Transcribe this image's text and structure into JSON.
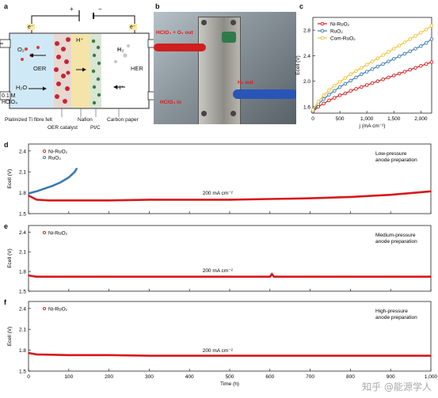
{
  "figure": {
    "panel_labels": [
      "a",
      "b",
      "c",
      "d",
      "e",
      "f"
    ],
    "watermark": "知乎 @能源学人"
  },
  "panel_a": {
    "plus": "+",
    "minus": "−",
    "e_left": "e⁻",
    "e_right": "e⁻",
    "o2": "O₂",
    "oer": "OER",
    "h2o": "H₂O",
    "h_plus_top": "H⁺",
    "h2": "H₂",
    "her": "HER",
    "h_plus_right": "H⁺",
    "electrolyte_line1": "0.1 M",
    "electrolyte_line2": "HClO₄",
    "felt": "Platinized Ti fibre felt",
    "nafion": "Nafion",
    "carbon": "Carbon paper",
    "oer_catalyst": "OER catalyst",
    "ptc": "Pt/C"
  },
  "panel_b": {
    "hclo4_o2_out": "HClO₄ + O₂ out",
    "h2_out": "H₂ out",
    "hclo4_in": "HClO₄ in"
  },
  "chart_data": [
    {
      "id": "c",
      "type": "line",
      "xlabel": "j (mA cm⁻²)",
      "ylabel": "Ecell (V)",
      "xlim": [
        0,
        2200
      ],
      "ylim": [
        1.5,
        3.0
      ],
      "xticks": [
        "0",
        "500",
        "1,000",
        "1,500",
        "2,000"
      ],
      "yticks": [
        "1.6",
        "2.0",
        "2.4",
        "2.8"
      ],
      "legend_position": "top-left",
      "series": [
        {
          "name": "Ni-RuO₂",
          "color": "#d7191c",
          "x": [
            0,
            100,
            200,
            300,
            400,
            500,
            600,
            700,
            800,
            900,
            1000,
            1100,
            1200,
            1300,
            1400,
            1500,
            1600,
            1700,
            1800,
            1900,
            2000,
            2100,
            2200
          ],
          "y": [
            1.52,
            1.6,
            1.65,
            1.7,
            1.74,
            1.78,
            1.81,
            1.85,
            1.88,
            1.91,
            1.94,
            1.97,
            2.0,
            2.03,
            2.06,
            2.09,
            2.12,
            2.15,
            2.18,
            2.21,
            2.24,
            2.27,
            2.3
          ]
        },
        {
          "name": "RuO₂",
          "color": "#3a78b4",
          "x": [
            0,
            100,
            200,
            300,
            400,
            500,
            600,
            700,
            800,
            900,
            1000,
            1100,
            1200,
            1300,
            1400,
            1500,
            1600,
            1700,
            1800,
            1900,
            2000,
            2100,
            2200
          ],
          "y": [
            1.53,
            1.64,
            1.72,
            1.79,
            1.85,
            1.91,
            1.96,
            2.01,
            2.06,
            2.11,
            2.15,
            2.19,
            2.23,
            2.27,
            2.31,
            2.35,
            2.39,
            2.43,
            2.47,
            2.51,
            2.55,
            2.6,
            2.66
          ]
        },
        {
          "name": "Com-RuO₂",
          "color": "#f2c230",
          "x": [
            0,
            100,
            200,
            300,
            400,
            500,
            600,
            700,
            800,
            900,
            1000,
            1100,
            1200,
            1300,
            1400,
            1500,
            1600,
            1700,
            1800,
            1900,
            2000,
            2100,
            2200
          ],
          "y": [
            1.55,
            1.68,
            1.78,
            1.86,
            1.93,
            1.99,
            2.05,
            2.11,
            2.16,
            2.21,
            2.26,
            2.31,
            2.36,
            2.41,
            2.46,
            2.51,
            2.56,
            2.61,
            2.66,
            2.71,
            2.76,
            2.81,
            2.87
          ]
        }
      ]
    },
    {
      "id": "d",
      "type": "line",
      "ylabel": "Ecell (V)",
      "xlim": [
        0,
        1000
      ],
      "ylim": [
        1.5,
        2.5
      ],
      "yticks": [
        "1.5",
        "1.8",
        "2.1",
        "2.4"
      ],
      "note_line1": "Low-pressure",
      "note_line2": "anode preparation",
      "annotation": "200 mA cm⁻²",
      "legend_position": "top-left",
      "series": [
        {
          "name": "Ni-RuO₂",
          "color": "#d7191c",
          "x": [
            0,
            20,
            50,
            100,
            150,
            200,
            300,
            400,
            500,
            600,
            700,
            800,
            900,
            1000
          ],
          "y": [
            1.76,
            1.7,
            1.69,
            1.69,
            1.69,
            1.69,
            1.7,
            1.7,
            1.7,
            1.71,
            1.72,
            1.74,
            1.77,
            1.82
          ]
        },
        {
          "name": "RuO₂",
          "color": "#3a78b4",
          "x": [
            0,
            20,
            40,
            60,
            80,
            100,
            115,
            120
          ],
          "y": [
            1.79,
            1.82,
            1.86,
            1.9,
            1.95,
            2.02,
            2.1,
            2.15
          ]
        }
      ]
    },
    {
      "id": "e",
      "type": "line",
      "ylabel": "Ecell (V)",
      "xlim": [
        0,
        1000
      ],
      "ylim": [
        1.5,
        2.5
      ],
      "yticks": [
        "1.5",
        "1.8",
        "2.1",
        "2.4"
      ],
      "note_line1": "Medium-pressure",
      "note_line2": "anode preparation",
      "annotation": "200 mA cm⁻²",
      "legend_position": "top-left",
      "series": [
        {
          "name": "Ni-RuO₂",
          "color": "#d7191c",
          "x": [
            0,
            20,
            100,
            200,
            300,
            400,
            500,
            600,
            605,
            610,
            700,
            800,
            900,
            1000
          ],
          "y": [
            1.74,
            1.72,
            1.72,
            1.72,
            1.72,
            1.72,
            1.72,
            1.72,
            1.76,
            1.72,
            1.72,
            1.72,
            1.72,
            1.72
          ]
        }
      ]
    },
    {
      "id": "f",
      "type": "line",
      "xlabel": "Time (h)",
      "ylabel": "Ecell (V)",
      "xlim": [
        0,
        1000
      ],
      "ylim": [
        1.5,
        2.5
      ],
      "xticks": [
        "0",
        "100",
        "200",
        "300",
        "400",
        "500",
        "600",
        "700",
        "800",
        "900",
        "1,000"
      ],
      "yticks": [
        "1.5",
        "1.8",
        "2.1",
        "2.4"
      ],
      "note_line1": "High-pressure",
      "note_line2": "anode preparation",
      "annotation": "200 mA cm⁻²",
      "legend_position": "top-left",
      "series": [
        {
          "name": "Ni-RuO₂",
          "color": "#d7191c",
          "x": [
            0,
            20,
            100,
            200,
            300,
            400,
            500,
            600,
            700,
            800,
            900,
            1000
          ],
          "y": [
            1.76,
            1.74,
            1.73,
            1.73,
            1.72,
            1.72,
            1.72,
            1.72,
            1.72,
            1.72,
            1.72,
            1.72
          ]
        }
      ]
    }
  ]
}
